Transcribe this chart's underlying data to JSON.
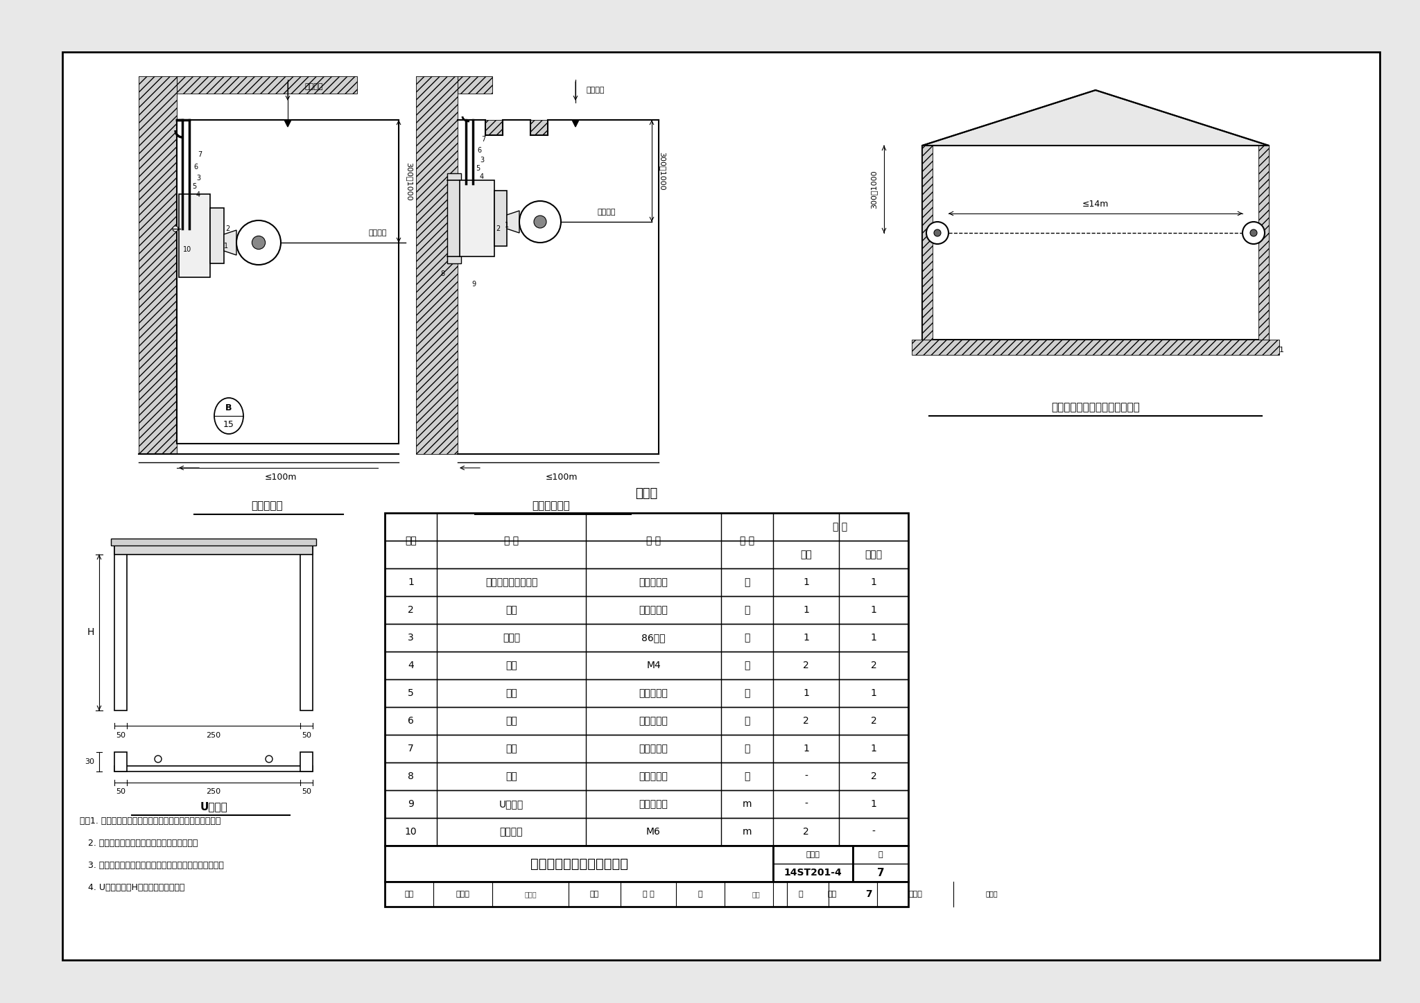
{
  "page_bg": "#e8e8e8",
  "drawing_bg": "#ffffff",
  "title": "红外光束感烟探测器安装图",
  "figure_number": "14ST201-4",
  "page_number": "7",
  "table_title": "材料表",
  "subtitle1": "砖墙安装图",
  "subtitle2": "彩钢板安装图",
  "subtitle3": "红外光速感烟探测器安装位置图",
  "subtitle4": "U型支架",
  "table_rows": [
    [
      "1",
      "红外光束感烟探测器",
      "见设计选型",
      "个",
      "1",
      "1"
    ],
    [
      "2",
      "底座",
      "见设计选型",
      "个",
      "1",
      "1"
    ],
    [
      "3",
      "接线盒",
      "86系列",
      "个",
      "1",
      "1"
    ],
    [
      "4",
      "螺钉",
      "M4",
      "根",
      "2",
      "2"
    ],
    [
      "5",
      "护口",
      "见设计选型",
      "个",
      "1",
      "1"
    ],
    [
      "6",
      "锁母",
      "见设计选型",
      "个",
      "2",
      "2"
    ],
    [
      "7",
      "管卡",
      "见设计选型",
      "个",
      "1",
      "1"
    ],
    [
      "8",
      "铆钉",
      "见设计选型",
      "个",
      "-",
      "2"
    ],
    [
      "9",
      "U型支架",
      "见设计选型",
      "m",
      "-",
      "1"
    ],
    [
      "10",
      "膨胀螺栓",
      "M6",
      "m",
      "2",
      "-"
    ]
  ],
  "notes": [
    "注：1. 红外光束探测器可安装于墙壁，也可安装于天花板。",
    "   2. 两种安装方式的安装支架由厂家配套提供。",
    "   3. 本图集只示意了红外光束探测器墙壁安装的安装方式。",
    "   4. U型支架高度H详见具体设计要求。"
  ]
}
